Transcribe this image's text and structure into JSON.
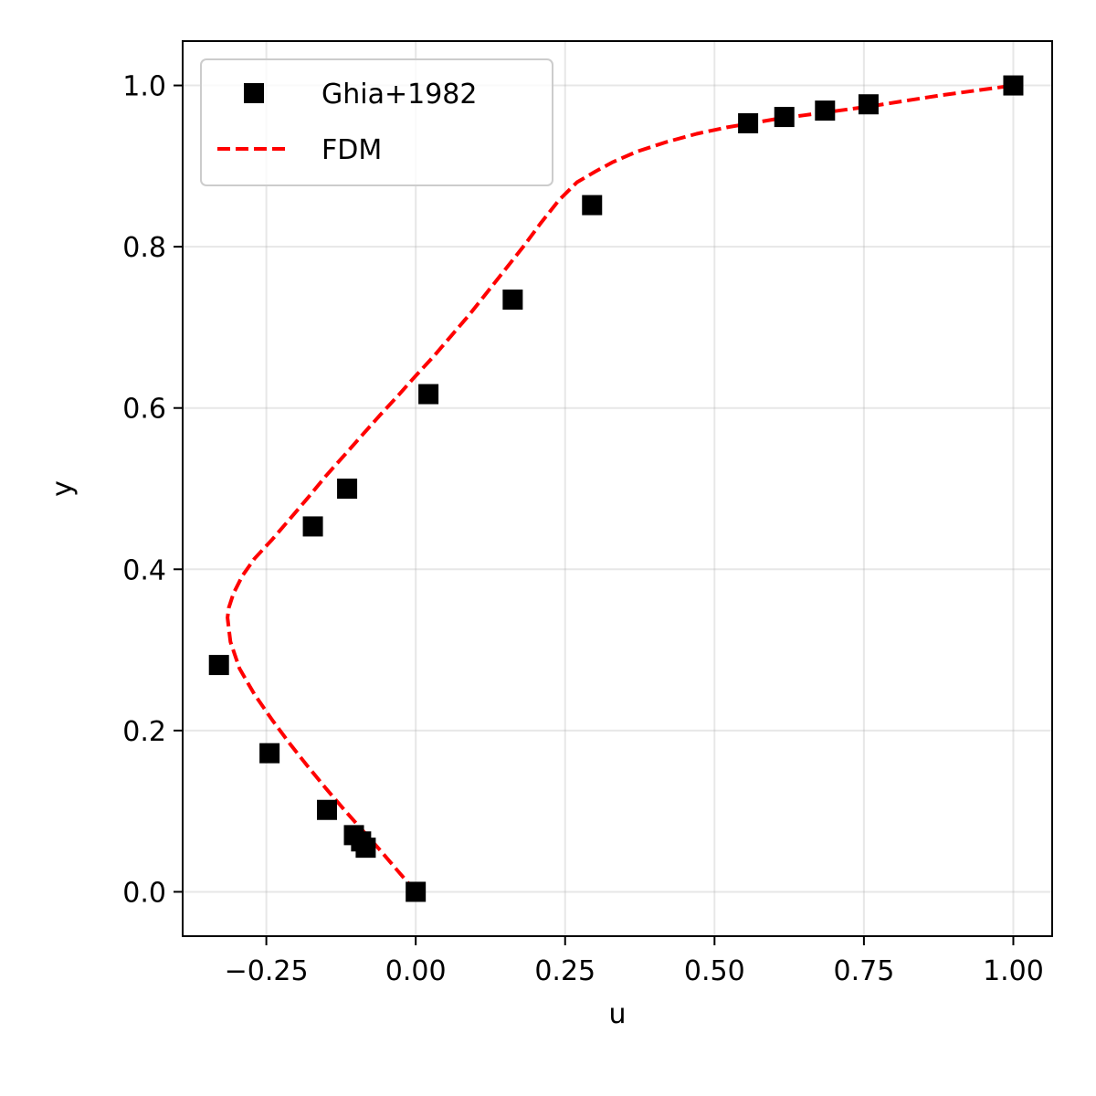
{
  "chart_data": {
    "type": "scatter",
    "title": "",
    "xlabel": "u",
    "ylabel": "y",
    "xlim": [
      -0.39,
      1.065
    ],
    "ylim": [
      -0.055,
      1.055
    ],
    "xticks": [
      -0.25,
      0.0,
      0.25,
      0.5,
      0.75,
      1.0
    ],
    "xtick_labels": [
      "−0.25",
      "0.00",
      "0.25",
      "0.50",
      "0.75",
      "1.00"
    ],
    "yticks": [
      0.0,
      0.2,
      0.4,
      0.6,
      0.8,
      1.0
    ],
    "ytick_labels": [
      "0.0",
      "0.2",
      "0.4",
      "0.6",
      "0.8",
      "1.0"
    ],
    "grid": true,
    "legend_position": "top-left",
    "series": [
      {
        "name": "Ghia+1982",
        "kind": "scatter",
        "marker": "square",
        "color": "#000000",
        "x": [
          0.0,
          -0.0837,
          -0.0914,
          -0.1034,
          -0.1485,
          -0.2446,
          -0.3293,
          -0.1721,
          -0.1148,
          0.0213,
          0.1623,
          0.2951,
          0.5562,
          0.6168,
          0.6849,
          0.7577,
          1.0
        ],
        "y": [
          0.0,
          0.0547,
          0.0625,
          0.0703,
          0.1016,
          0.1719,
          0.2813,
          0.4531,
          0.5,
          0.6172,
          0.7344,
          0.8516,
          0.9531,
          0.9609,
          0.9688,
          0.9766,
          1.0
        ]
      },
      {
        "name": "FDM",
        "kind": "line",
        "style": "dashed",
        "color": "#ff0000",
        "x": [
          0.0,
          -0.03,
          -0.06,
          -0.09,
          -0.12,
          -0.15,
          -0.18,
          -0.21,
          -0.24,
          -0.27,
          -0.295,
          -0.31,
          -0.315,
          -0.313,
          -0.305,
          -0.29,
          -0.27,
          -0.24,
          -0.21,
          -0.18,
          -0.15,
          -0.12,
          -0.09,
          -0.06,
          -0.03,
          0.0,
          0.03,
          0.06,
          0.09,
          0.12,
          0.15,
          0.18,
          0.21,
          0.24,
          0.27,
          0.3,
          0.33,
          0.37,
          0.42,
          0.47,
          0.52,
          0.56,
          0.6,
          0.65,
          0.7,
          0.76,
          0.82,
          0.88,
          0.94,
          1.0
        ],
        "y": [
          0.0,
          0.026,
          0.052,
          0.077,
          0.102,
          0.128,
          0.155,
          0.183,
          0.213,
          0.245,
          0.277,
          0.31,
          0.34,
          0.352,
          0.37,
          0.392,
          0.413,
          0.437,
          0.463,
          0.489,
          0.516,
          0.541,
          0.566,
          0.591,
          0.615,
          0.64,
          0.664,
          0.69,
          0.716,
          0.744,
          0.772,
          0.8,
          0.83,
          0.858,
          0.88,
          0.893,
          0.905,
          0.918,
          0.93,
          0.94,
          0.948,
          0.953,
          0.958,
          0.963,
          0.968,
          0.974,
          0.981,
          0.988,
          0.994,
          1.0
        ]
      }
    ]
  }
}
